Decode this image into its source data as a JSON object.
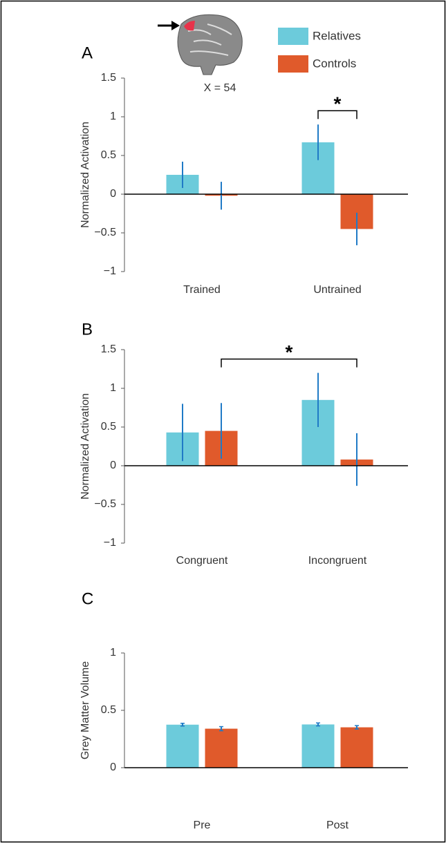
{
  "chart_data": [
    {
      "type": "bar",
      "panel": "A",
      "ylabel": "Normalized Activation",
      "annotation": "X = 54",
      "categories": [
        "Trained",
        "Untrained"
      ],
      "series": [
        {
          "name": "Relatives",
          "color": "#6ccbdb",
          "values": [
            0.25,
            0.67
          ],
          "errors": [
            0.17,
            0.23
          ]
        },
        {
          "name": "Controls",
          "color": "#e05a2b",
          "values": [
            -0.02,
            -0.45
          ],
          "errors": [
            0.18,
            0.21
          ]
        }
      ],
      "ylim": [
        -1,
        1.5
      ],
      "yticks": [
        {
          "value": -1,
          "label": "−1"
        },
        {
          "value": -0.5,
          "label": "−0.5"
        },
        0,
        0.5,
        1,
        1.5
      ],
      "significance": {
        "label": "*",
        "between": [
          [
            0,
            1
          ],
          [
            1,
            1
          ]
        ]
      }
    },
    {
      "type": "bar",
      "panel": "B",
      "ylabel": "Normalized Activation",
      "categories": [
        "Congruent",
        "Incongruent"
      ],
      "series": [
        {
          "color": "#6ccbdb",
          "values": [
            0.43,
            0.85
          ],
          "errors": [
            0.37,
            0.35
          ]
        },
        {
          "color": "#e05a2b",
          "values": [
            0.45,
            0.08
          ],
          "errors": [
            0.36,
            0.34
          ]
        }
      ],
      "ylim": [
        -1,
        1.5
      ],
      "yticks": [
        {
          "value": -1,
          "label": "−1"
        },
        {
          "value": -0.5,
          "label": "−0.5"
        },
        0,
        0.5,
        1,
        1.5
      ],
      "significance": {
        "label": "*",
        "between": [
          [
            1,
            0
          ],
          [
            1,
            1
          ]
        ]
      }
    },
    {
      "type": "bar",
      "panel": "C",
      "ylabel": "Grey Matter Volume",
      "categories": [
        "Pre",
        "Post"
      ],
      "series": [
        {
          "color": "#6ccbdb",
          "values": [
            0.375,
            0.377
          ],
          "errors": [
            0.012,
            0.013
          ]
        },
        {
          "color": "#e05a2b",
          "values": [
            0.34,
            0.352
          ],
          "errors": [
            0.018,
            0.015
          ]
        }
      ],
      "ylim": [
        0,
        1
      ],
      "yticks": [
        0,
        0.5,
        1
      ]
    }
  ]
}
